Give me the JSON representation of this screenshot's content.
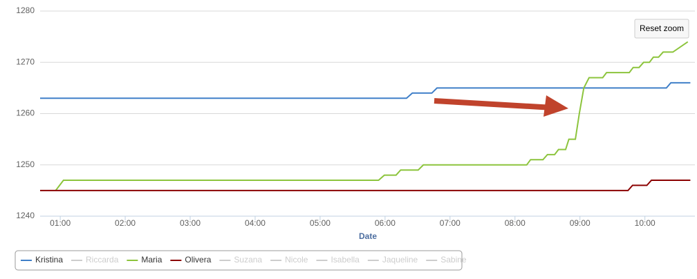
{
  "chart_data": {
    "type": "line",
    "x_label": "Date",
    "button": "Reset zoom",
    "xlim": [
      0.69,
      10.77
    ],
    "xticks": [
      {
        "value": 1,
        "label": "01:00"
      },
      {
        "value": 2,
        "label": "02:00"
      },
      {
        "value": 3,
        "label": "03:00"
      },
      {
        "value": 4,
        "label": "04:00"
      },
      {
        "value": 5,
        "label": "05:00"
      },
      {
        "value": 6,
        "label": "06:00"
      },
      {
        "value": 7,
        "label": "07:00"
      },
      {
        "value": 8,
        "label": "08:00"
      },
      {
        "value": 9,
        "label": "09:00"
      },
      {
        "value": 10,
        "label": "10:00"
      }
    ],
    "ylim": [
      1240,
      1280
    ],
    "yticks": [
      1240,
      1250,
      1260,
      1270,
      1280
    ],
    "grid": true,
    "series": [
      {
        "name": "Kristina",
        "color": "#3f7fc8",
        "visible": true,
        "x": [
          0.69,
          6.33,
          6.42,
          6.72,
          6.8,
          10.33,
          10.4,
          10.7
        ],
        "values": [
          1263,
          1263,
          1264,
          1264,
          1265,
          1265,
          1266,
          1266
        ]
      },
      {
        "name": "Riccarda",
        "color": "#cccccc",
        "visible": false,
        "x": [],
        "values": []
      },
      {
        "name": "Maria",
        "color": "#8cc43c",
        "visible": true,
        "x": [
          0.93,
          1.05,
          5.9,
          5.99,
          6.17,
          6.24,
          6.51,
          6.59,
          8.18,
          8.24,
          8.43,
          8.5,
          8.61,
          8.67,
          8.78,
          8.83,
          8.93,
          8.99,
          9.06,
          9.14,
          9.35,
          9.41,
          9.76,
          9.82,
          9.91,
          9.98,
          10.07,
          10.13,
          10.21,
          10.28,
          10.43,
          10.66
        ],
        "values": [
          1245,
          1247,
          1247,
          1248,
          1248,
          1249,
          1249,
          1250,
          1250,
          1251,
          1251,
          1252,
          1252,
          1253,
          1253,
          1255,
          1255,
          1260,
          1265,
          1267,
          1267,
          1268,
          1268,
          1269,
          1269,
          1270,
          1270,
          1271,
          1271,
          1272,
          1272,
          1274
        ]
      },
      {
        "name": "Olivera",
        "color": "#8b0000",
        "visible": true,
        "x": [
          0.69,
          9.74,
          9.81,
          10.03,
          10.1,
          10.7
        ],
        "values": [
          1245,
          1245,
          1246,
          1246,
          1247,
          1247
        ]
      },
      {
        "name": "Suzana",
        "color": "#cccccc",
        "visible": false,
        "x": [],
        "values": []
      },
      {
        "name": "Nicole",
        "color": "#cccccc",
        "visible": false,
        "x": [],
        "values": []
      },
      {
        "name": "Isabella",
        "color": "#cccccc",
        "visible": false,
        "x": [],
        "values": []
      },
      {
        "name": "Jaqueline",
        "color": "#cccccc",
        "visible": false,
        "x": [],
        "values": []
      },
      {
        "name": "Sabine",
        "color": "#cccccc",
        "visible": false,
        "x": [],
        "values": []
      }
    ]
  }
}
